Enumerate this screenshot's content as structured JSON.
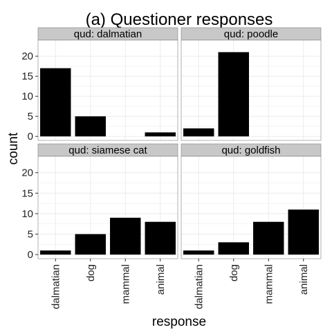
{
  "chart_data": {
    "type": "bar",
    "title": "(a) Questioner responses",
    "xlabel": "response",
    "ylabel": "count",
    "categories": [
      "dalmatian",
      "dog",
      "mammal",
      "animal"
    ],
    "ylim": [
      -1,
      24
    ],
    "yticks": [
      0,
      5,
      10,
      15,
      20
    ],
    "grid": true,
    "facet_prefix": "qud: ",
    "panels": [
      {
        "strip": "qud: dalmatian",
        "values": [
          17,
          5,
          0,
          1
        ]
      },
      {
        "strip": "qud: poodle",
        "values": [
          2,
          21,
          0,
          0
        ]
      },
      {
        "strip": "qud: siamese cat",
        "values": [
          1,
          5,
          9,
          8
        ]
      },
      {
        "strip": "qud: goldfish",
        "values": [
          1,
          3,
          8,
          11
        ]
      }
    ],
    "colors": {
      "bar": "#000000",
      "panel_bg": "#ffffff",
      "grid": "#ebebeb",
      "strip_bg": "#c8c8c8",
      "strip_border": "#7f7f7f",
      "panel_border": "#7f7f7f"
    }
  }
}
